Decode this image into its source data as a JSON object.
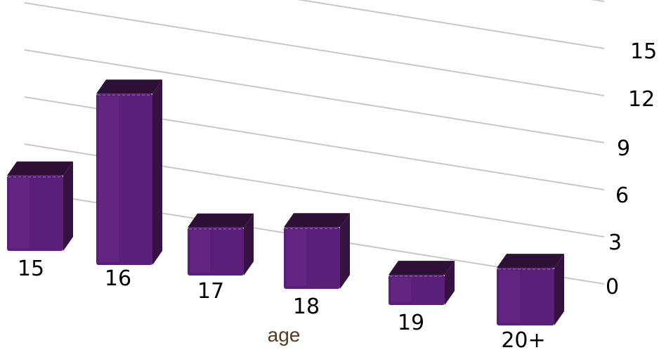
{
  "chart_data": {
    "type": "bar",
    "style": "3d",
    "categories": [
      "15",
      "16",
      "17",
      "18",
      "19",
      "20+"
    ],
    "values": [
      5.5,
      12.5,
      3.5,
      4.5,
      2.2,
      4.2
    ],
    "xlabel": "age",
    "ylabel": "",
    "ylim": [
      0,
      15
    ],
    "yticks": [
      "0",
      "3",
      "6",
      "9",
      "12",
      "15"
    ],
    "grid": true,
    "legend": "none",
    "colors": {
      "bar_front": "#5a1f78",
      "bar_side": "#35123f",
      "bar_top": "#2e1036",
      "gridline": "#c8c8c8"
    }
  }
}
